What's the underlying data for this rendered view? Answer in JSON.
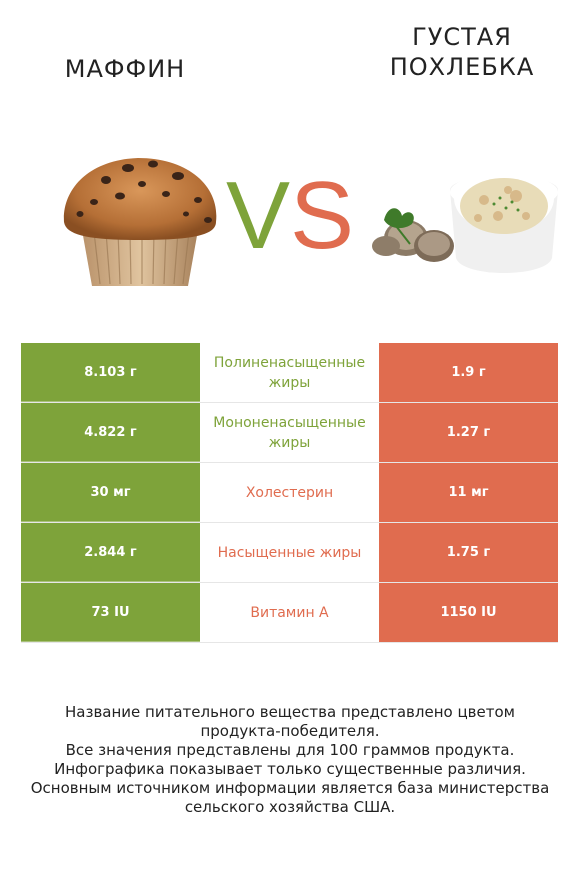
{
  "colors": {
    "left": "#7ea33a",
    "right": "#e06c4f"
  },
  "titles": {
    "left": "МАФФИН",
    "right_line1": "ГУСТАЯ",
    "right_line2": "ПОХЛЕБКА"
  },
  "vs": {
    "v": "V",
    "s": "S"
  },
  "rows": [
    {
      "left": "8.103 г",
      "label": "Полиненасыщенные жиры",
      "right": "1.9 г",
      "winner": "left"
    },
    {
      "left": "4.822 г",
      "label": "Мононенасыщенные жиры",
      "right": "1.27 г",
      "winner": "left"
    },
    {
      "left": "30 мг",
      "label": "Холестерин",
      "right": "11 мг",
      "winner": "right"
    },
    {
      "left": "2.844 г",
      "label": "Насыщенные жиры",
      "right": "1.75 г",
      "winner": "right"
    },
    {
      "left": "73 IU",
      "label": "Витамин A",
      "right": "1150 IU",
      "winner": "right"
    }
  ],
  "footer": {
    "line1": "Название питательного вещества представлено цветом",
    "line2": "продукта-победителя.",
    "line3": "Все значения представлены для 100 граммов продукта.",
    "line4": "Инфографика показывает только существенные различия.",
    "line5": "Основным источником информации является база министерства",
    "line6": "сельского хозяйства США."
  }
}
